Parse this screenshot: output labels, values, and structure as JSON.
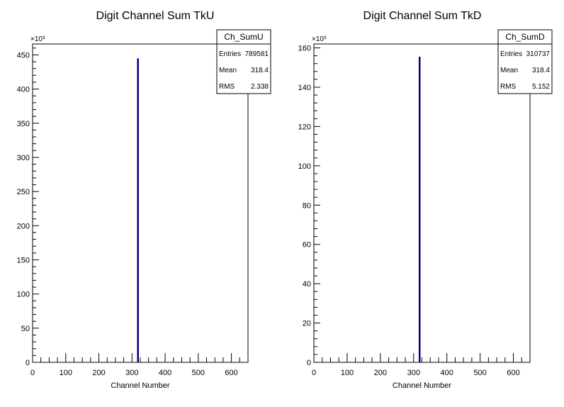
{
  "chart_data": [
    {
      "type": "bar",
      "title": "Digit Channel Sum TkU",
      "xlabel": "Channel Number",
      "ylabel": "",
      "y_exponent_label": "×10³",
      "xlim": [
        0,
        650
      ],
      "ylim": [
        0,
        466
      ],
      "x_ticks": [
        0,
        100,
        200,
        300,
        400,
        500,
        600
      ],
      "y_ticks": [
        0,
        50,
        100,
        150,
        200,
        250,
        300,
        350,
        400,
        450
      ],
      "series": [
        {
          "x": [
            318
          ],
          "values": [
            445
          ]
        }
      ],
      "line_color": "#000080",
      "stats": {
        "name": "Ch_SumU",
        "rows": [
          {
            "label": "Entries",
            "value": "789581"
          },
          {
            "label": "Mean",
            "value": "318.4"
          },
          {
            "label": "RMS",
            "value": "2.338"
          }
        ]
      }
    },
    {
      "type": "bar",
      "title": "Digit Channel Sum TkD",
      "xlabel": "Channel Number",
      "ylabel": "",
      "y_exponent_label": "×10³",
      "xlim": [
        0,
        650
      ],
      "ylim": [
        0,
        162
      ],
      "x_ticks": [
        0,
        100,
        200,
        300,
        400,
        500,
        600
      ],
      "y_ticks": [
        0,
        20,
        40,
        60,
        80,
        100,
        120,
        140,
        160
      ],
      "series": [
        {
          "x": [
            318
          ],
          "values": [
            155.5
          ]
        }
      ],
      "line_color": "#000080",
      "stats": {
        "name": "Ch_SumD",
        "rows": [
          {
            "label": "Entries",
            "value": "310737"
          },
          {
            "label": "Mean",
            "value": "318.4"
          },
          {
            "label": "RMS",
            "value": "5.152"
          }
        ]
      }
    }
  ]
}
